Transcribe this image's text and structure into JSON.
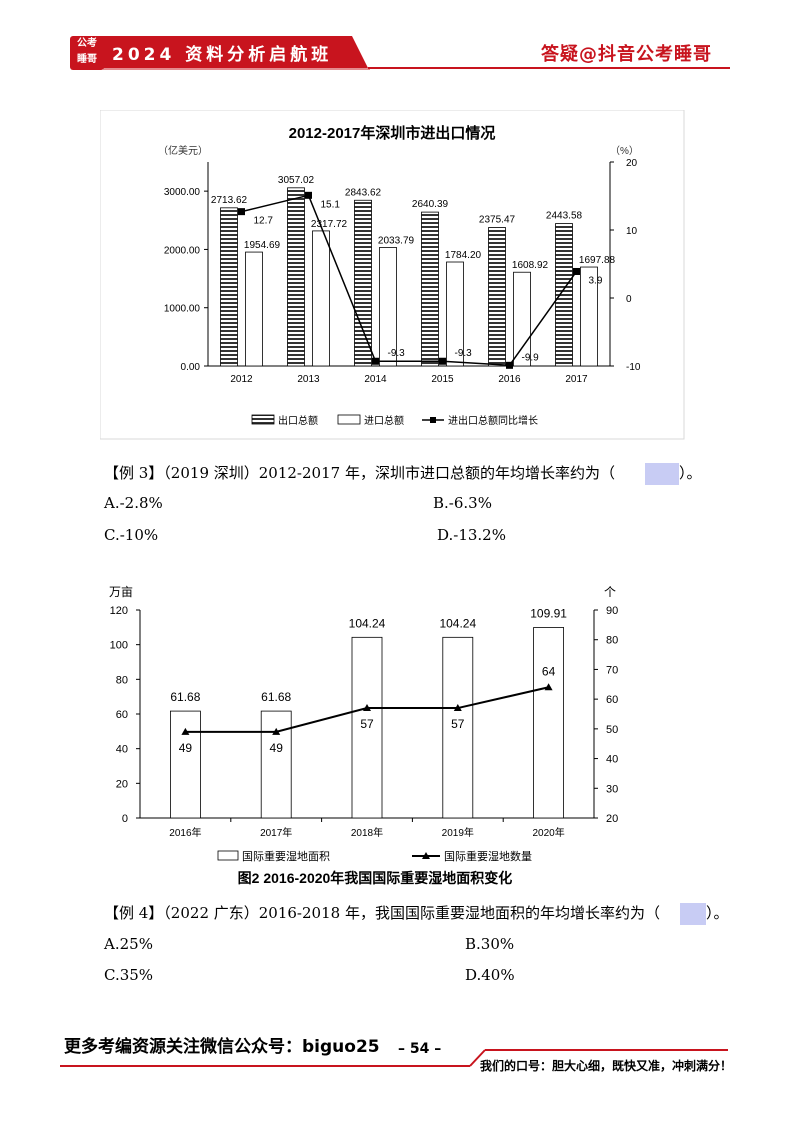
{
  "header": {
    "logo_lines": [
      "公考",
      "睡哥"
    ],
    "title": "2024 资料分析启航班",
    "right_text": "答疑@抖音公考睡哥",
    "accent_color": "#c8141e"
  },
  "chart1_data": {
    "type": "bar-line",
    "title": "2012-2017年深圳市进出口情况",
    "y_left_unit": "（亿美元）",
    "y_right_unit": "（%）",
    "categories": [
      "2012",
      "2013",
      "2014",
      "2015",
      "2016",
      "2017"
    ],
    "y_left_ticks": [
      "0.00",
      "1000.00",
      "2000.00",
      "3000.00"
    ],
    "y_left_lim": [
      0,
      3500
    ],
    "y_right_ticks": [
      "-10",
      "0",
      "10",
      "20"
    ],
    "y_right_lim": [
      -10,
      20
    ],
    "series": [
      {
        "name": "出口总额",
        "type": "bar",
        "values": [
          2713.62,
          3057.02,
          2843.62,
          2640.39,
          2375.47,
          2443.58
        ],
        "labels": [
          "2713.62",
          "3057.02",
          "2843.62",
          "2640.39",
          "2375.47",
          "2443.58"
        ]
      },
      {
        "name": "进口总额",
        "type": "bar",
        "values": [
          1954.69,
          2317.72,
          2033.79,
          1784.2,
          1608.92,
          1697.88
        ],
        "labels": [
          "1954.69",
          "2317.72",
          "2033.79",
          "1784.20",
          "1608.92",
          "1697.88"
        ]
      },
      {
        "name": "进出口总额同比增长",
        "type": "line",
        "values": [
          12.7,
          15.1,
          -9.3,
          -9.3,
          -9.9,
          3.9
        ],
        "labels": [
          "12.7",
          "15.1",
          "-9.3",
          "-9.3",
          "-9.9",
          "3.9"
        ]
      }
    ]
  },
  "question3": {
    "text": "【例 3】（2019 深圳）2012-2017 年，深圳市进口总额的年均增长率约为（",
    "close": "）。",
    "options": [
      "A.-2.8%",
      "B.-6.3%",
      "C.-10%",
      "D.-13.2%"
    ]
  },
  "chart2_data": {
    "type": "bar-line",
    "title": "图2 2016-2020年我国国际重要湿地面积变化",
    "y_left_unit": "万亩",
    "y_right_unit": "个",
    "categories": [
      "2016年",
      "2017年",
      "2018年",
      "2019年",
      "2020年"
    ],
    "y_left_ticks": [
      "0",
      "20",
      "40",
      "60",
      "80",
      "100",
      "120"
    ],
    "y_left_lim": [
      0,
      120
    ],
    "y_right_ticks": [
      "20",
      "30",
      "40",
      "50",
      "60",
      "70",
      "80",
      "90"
    ],
    "y_right_lim": [
      20,
      90
    ],
    "series": [
      {
        "name": "国际重要湿地面积",
        "type": "bar",
        "values": [
          61.68,
          61.68,
          104.24,
          104.24,
          109.91
        ],
        "labels": [
          "61.68",
          "61.68",
          "104.24",
          "104.24",
          "109.91"
        ]
      },
      {
        "name": "国际重要湿地数量",
        "type": "line",
        "values": [
          49,
          49,
          57,
          57,
          64
        ],
        "labels": [
          "49",
          "49",
          "57",
          "57",
          "64"
        ]
      }
    ]
  },
  "question4": {
    "text": "【例 4】（2022 广东）2016-2018 年，我国国际重要湿地面积的年均增长率约为（",
    "close": "）。",
    "options": [
      "A.25%",
      "B.30%",
      "C.35%",
      "D.40%"
    ]
  },
  "footer": {
    "left": "更多考编资源关注微信公众号：biguo25",
    "page": "– 54 –",
    "right": "我们的口号：胆大心细，既快又准，冲刺满分！"
  }
}
